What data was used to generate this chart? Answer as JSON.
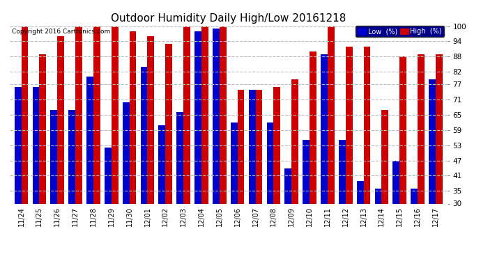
{
  "title": "Outdoor Humidity Daily High/Low 20161218",
  "copyright": "Copyright 2016 Cartronics.com",
  "categories": [
    "11/24",
    "11/25",
    "11/26",
    "11/27",
    "11/28",
    "11/29",
    "11/30",
    "12/01",
    "12/02",
    "12/03",
    "12/04",
    "12/05",
    "12/06",
    "12/07",
    "12/08",
    "12/09",
    "12/10",
    "12/11",
    "12/12",
    "12/13",
    "12/14",
    "12/15",
    "12/16",
    "12/17"
  ],
  "low_values": [
    76,
    76,
    67,
    67,
    80,
    52,
    70,
    84,
    61,
    66,
    98,
    99,
    62,
    75,
    62,
    44,
    55,
    89,
    55,
    39,
    36,
    47,
    36,
    79
  ],
  "high_values": [
    100,
    89,
    96,
    100,
    100,
    100,
    98,
    96,
    93,
    100,
    100,
    100,
    75,
    75,
    76,
    79,
    90,
    100,
    92,
    92,
    67,
    88,
    89,
    89
  ],
  "low_color": "#0000cc",
  "high_color": "#cc0000",
  "bg_color": "#ffffff",
  "grid_color": "#bbbbbb",
  "ylim_min": 30,
  "ylim_max": 100,
  "yticks": [
    30,
    35,
    41,
    47,
    53,
    59,
    65,
    71,
    77,
    82,
    88,
    94,
    100
  ],
  "bar_width": 0.38,
  "legend_low_label": "Low  (%)",
  "legend_high_label": "High  (%)"
}
